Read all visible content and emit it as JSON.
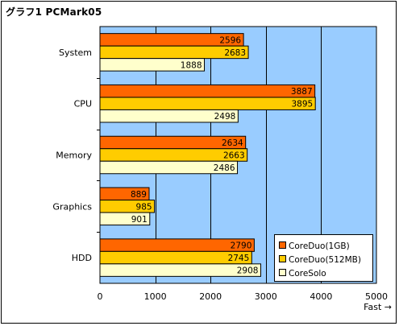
{
  "title": "グラフ1  PCMark05",
  "chart_data": {
    "type": "bar",
    "orientation": "horizontal",
    "title": "グラフ1  PCMark05",
    "categories": [
      "System",
      "CPU",
      "Memory",
      "Graphics",
      "HDD"
    ],
    "series": [
      {
        "name": "CoreDuo(1GB)",
        "color": "#FF6600",
        "values": [
          2596,
          3887,
          2634,
          889,
          2790
        ]
      },
      {
        "name": "CoreDuo(512MB)",
        "color": "#FFCC00",
        "values": [
          2683,
          3895,
          2663,
          985,
          2745
        ]
      },
      {
        "name": "CoreSolo",
        "color": "#FFFFCC",
        "values": [
          1888,
          2498,
          2486,
          901,
          2908
        ]
      }
    ],
    "xlim": [
      0,
      5000
    ],
    "xticks": [
      0,
      1000,
      2000,
      3000,
      4000,
      5000
    ],
    "xlabel": "Fast →",
    "grid": true,
    "plot_background": "#99CCFF",
    "legend_position": "bottom-right"
  }
}
